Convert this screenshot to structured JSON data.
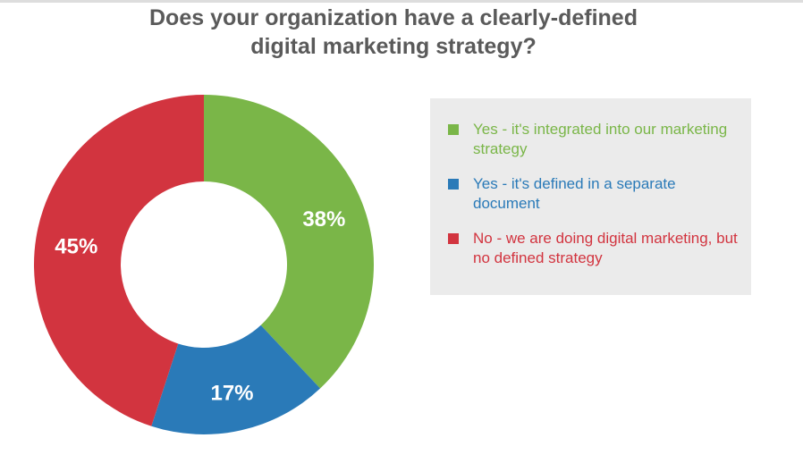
{
  "chart_data": {
    "type": "pie",
    "title": "Does your organization have a clearly-defined digital marketing strategy?",
    "categories": [
      "Yes - it's integrated into our marketing strategy",
      "Yes - it's defined in a separate document",
      "No - we are doing digital marketing, but no defined strategy"
    ],
    "values": [
      38,
      17,
      45
    ],
    "value_labels": [
      "38%",
      "17%",
      "45%"
    ],
    "colors": [
      "#7ab648",
      "#2a7ab8",
      "#d2343f"
    ],
    "legend": "right"
  }
}
